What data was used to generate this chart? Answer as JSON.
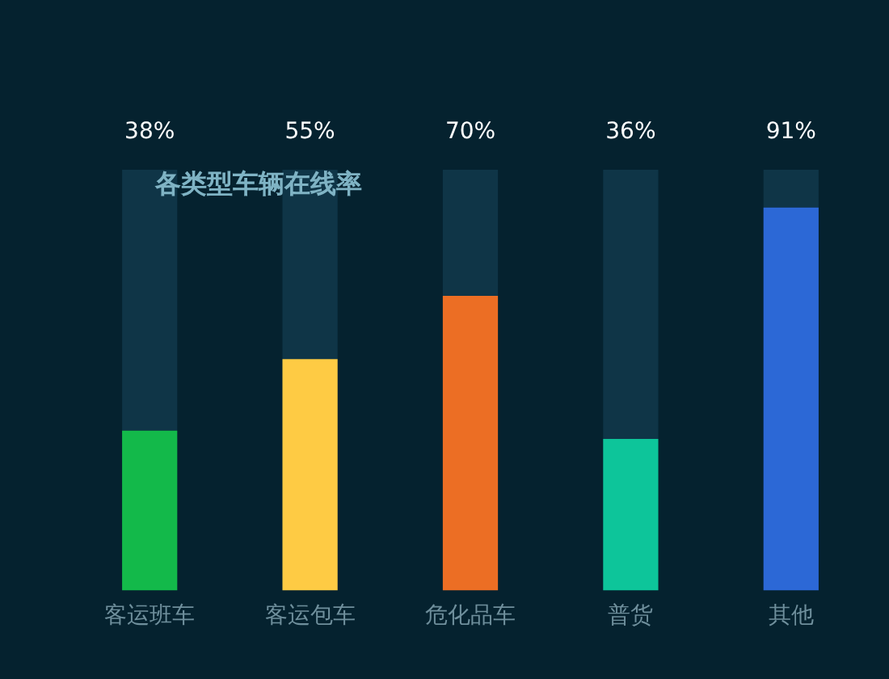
{
  "chart_data": {
    "type": "bar",
    "title": "各类型车辆在线率",
    "categories": [
      "客运班车",
      "客运包车",
      "危化品车",
      "普货",
      "其他"
    ],
    "series": [
      {
        "colors": [
          "#13b94a",
          "#fecb44",
          "#ec6e24",
          "#0dc59a",
          "#2c68d6"
        ],
        "values": [
          38,
          55,
          70,
          36,
          91
        ],
        "value_labels": [
          "38%",
          "55%",
          "70%",
          "36%",
          "91%"
        ]
      },
      {
        "color": "#0f3547",
        "values": [
          62,
          45,
          30,
          64,
          9
        ]
      }
    ],
    "stacked": true,
    "legend": false,
    "tick_labels": "x"
  }
}
